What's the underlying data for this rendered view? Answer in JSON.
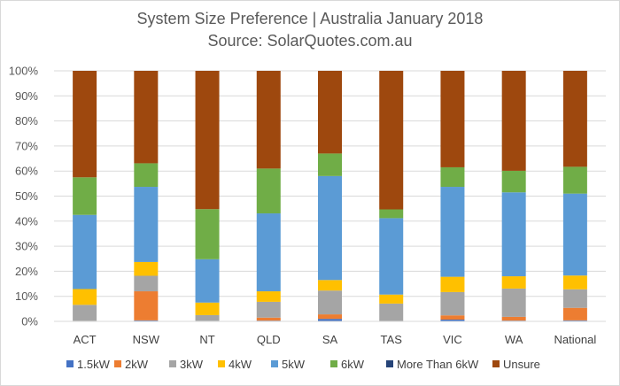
{
  "chart_data": {
    "type": "bar",
    "stacked": true,
    "normalized": true,
    "title": "System Size Preference  | Australia January 2018",
    "subtitle": "Source: SolarQuotes.com.au",
    "xlabel": "",
    "ylabel": "",
    "ylim": [
      0,
      100
    ],
    "yticks": [
      "0%",
      "10%",
      "20%",
      "30%",
      "40%",
      "50%",
      "60%",
      "70%",
      "80%",
      "90%",
      "100%"
    ],
    "grid": true,
    "legend_position": "bottom",
    "categories": [
      "ACT",
      "NSW",
      "NT",
      "QLD",
      "SA",
      "TAS",
      "VIC",
      "WA",
      "National"
    ],
    "series": [
      {
        "name": "1.5kW",
        "color": "#4472c4",
        "values": [
          0.0,
          0.4,
          0.2,
          0.3,
          1.0,
          0.0,
          0.7,
          0.3,
          0.4
        ]
      },
      {
        "name": "2kW",
        "color": "#ed7d31",
        "values": [
          0.2,
          11.6,
          0.0,
          1.2,
          1.8,
          0.0,
          1.7,
          1.5,
          5.0
        ]
      },
      {
        "name": "3kW",
        "color": "#a5a5a5",
        "values": [
          6.4,
          6.2,
          2.3,
          6.3,
          9.5,
          7.1,
          9.3,
          11.3,
          7.4
        ]
      },
      {
        "name": "4kW",
        "color": "#ffc000",
        "values": [
          6.3,
          5.5,
          5.0,
          4.2,
          4.2,
          3.6,
          6.1,
          4.9,
          5.5
        ]
      },
      {
        "name": "5kW",
        "color": "#5b9bd5",
        "values": [
          29.6,
          30.0,
          17.3,
          31.1,
          41.5,
          30.5,
          35.9,
          33.5,
          32.7
        ]
      },
      {
        "name": "6kW",
        "color": "#70ad47",
        "values": [
          15.0,
          9.4,
          20.0,
          17.9,
          9.0,
          3.5,
          7.8,
          8.6,
          10.7
        ]
      },
      {
        "name": "More Than 6kW",
        "color": "#264478",
        "values": [
          0.0,
          0.0,
          0.0,
          0.0,
          0.0,
          0.0,
          0.0,
          0.0,
          0.0
        ]
      },
      {
        "name": "Unsure",
        "color": "#9e480e",
        "values": [
          42.5,
          36.9,
          55.2,
          39.0,
          33.0,
          55.3,
          38.5,
          39.9,
          38.3
        ]
      }
    ]
  }
}
